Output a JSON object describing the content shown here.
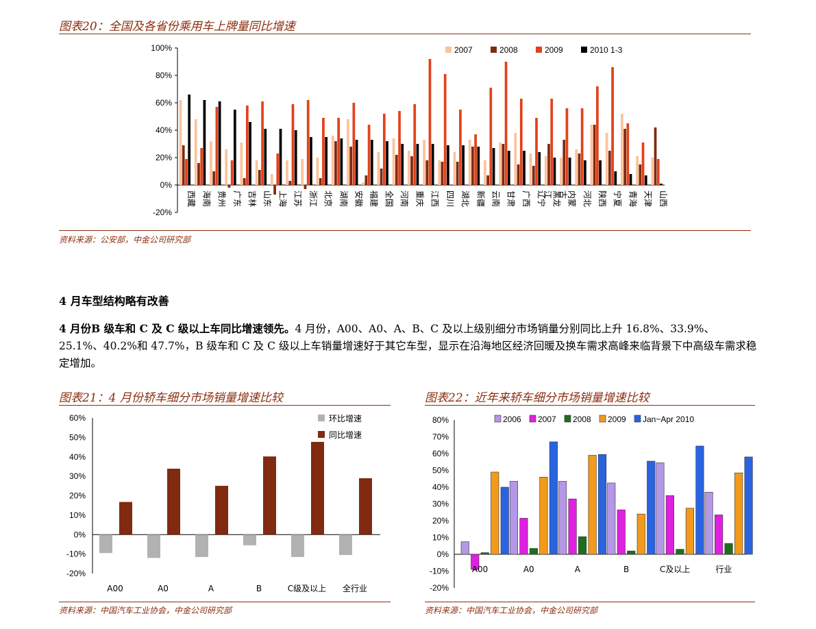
{
  "doc": {
    "fig20_title": "图表20：全国及各省份乘用车上牌量同比增速",
    "fig20_source": "资料来源：公安部，中金公司研究部",
    "section_heading": "4 月车型结构略有改善",
    "para_lead": "4 月份B 级车和 C 及 C 级以上车同比增速领先。",
    "para_rest": "4 月份，A00、A0、A、B、C 及以上级别细分市场销量分别同比上升 16.8%、33.9%、25.1%、40.2%和 47.7%，B 级车和 C 及 C 级以上车销量增速好于其它车型，显示在沿海地区经济回暖及换车需求高峰来临背景下中高级车需求稳定增加。",
    "fig21_title": "图表21：4 月份轿车细分市场销量增速比较",
    "fig21_source": "资料来源：中国汽车工业协会，中金公司研究部",
    "fig22_title": "图表22：近年来轿车细分市场销量增速比较",
    "fig22_source": "资料来源：中国汽车工业协会，中金公司研究部"
  },
  "chart_data": [
    {
      "type": "bar",
      "categories": [
        "西藏",
        "海南",
        "贵州",
        "广东",
        "吉林",
        "山东",
        "上海",
        "江苏",
        "浙江",
        "北京",
        "湖南",
        "安徽",
        "福建",
        "全国",
        "河南",
        "重庆",
        "江西",
        "四川",
        "湖北",
        "新疆",
        "云南",
        "甘肃",
        "广西",
        "辽宁",
        "黑龙江",
        "内蒙古",
        "河北",
        "陕西",
        "宁夏",
        "青海",
        "天津",
        "山西"
      ],
      "series": [
        {
          "name": "2007",
          "values": [
            62,
            48,
            32,
            26,
            31,
            18,
            8,
            18,
            19,
            20,
            36,
            48,
            2,
            24,
            34,
            25,
            33,
            18,
            24,
            33,
            18,
            31,
            38,
            23,
            21,
            20,
            26,
            44,
            38,
            52,
            21,
            20
          ]
        },
        {
          "name": "2008",
          "values": [
            29,
            16,
            10,
            -2,
            5,
            11,
            -7,
            3,
            -3,
            5,
            32,
            28,
            7,
            12,
            22,
            21,
            18,
            17,
            17,
            28,
            7,
            30,
            15,
            14,
            30,
            33,
            23,
            44,
            25,
            41,
            15,
            42
          ]
        },
        {
          "name": "2009",
          "values": [
            19,
            27,
            57,
            18,
            58,
            61,
            23,
            59,
            62,
            49,
            49,
            60,
            44,
            52,
            54,
            59,
            92,
            81,
            55,
            37,
            71,
            90,
            63,
            49,
            63,
            56,
            56,
            72,
            86,
            45,
            31,
            19
          ]
        },
        {
          "name": "2010 1-3",
          "values": [
            66,
            62,
            61,
            55,
            46,
            41,
            41,
            40,
            35,
            35,
            34,
            33,
            33,
            32,
            30,
            30,
            30,
            29,
            29,
            28,
            27,
            25,
            25,
            24,
            20,
            20,
            18,
            18,
            10,
            8,
            7,
            1
          ]
        }
      ],
      "ylim": [
        -20,
        100
      ],
      "yticks": [
        "100%",
        "80%",
        "60%",
        "40%",
        "20%",
        "0%",
        "-20%"
      ],
      "colors": [
        "#FBC39B",
        "#7F2A11",
        "#E2421A",
        "#000000"
      ],
      "legend": "top-right"
    },
    {
      "type": "bar",
      "categories": [
        "A00",
        "A0",
        "A",
        "B",
        "C级及以上",
        "全行业"
      ],
      "series": [
        {
          "name": "环比增速",
          "values": [
            -9.5,
            -12,
            -11.5,
            -5.5,
            -11.5,
            -10.5
          ]
        },
        {
          "name": "同比增速",
          "values": [
            16.8,
            33.9,
            25.1,
            40.2,
            47.7,
            29
          ]
        }
      ],
      "ylim": [
        -20,
        60
      ],
      "yticks": [
        "60%",
        "50%",
        "40%",
        "30%",
        "20%",
        "10%",
        "0%",
        "-10%",
        "-20%"
      ],
      "colors": [
        "#B2B2B2",
        "#7F2A11"
      ],
      "legend": "top-right"
    },
    {
      "type": "bar",
      "categories": [
        "A00",
        "A0",
        "A",
        "B",
        "C及以上",
        "行业"
      ],
      "series": [
        {
          "name": "2006",
          "values": [
            7.5,
            43.5,
            43.5,
            42.5,
            54.5,
            37
          ]
        },
        {
          "name": "2007",
          "values": [
            -9,
            21.5,
            33,
            26.5,
            35,
            23.5
          ]
        },
        {
          "name": "2008",
          "values": [
            1,
            3.5,
            10.5,
            2,
            3,
            6.5
          ]
        },
        {
          "name": "2009",
          "values": [
            49,
            46,
            59,
            24,
            27.5,
            48.5
          ]
        },
        {
          "name": "Jan~Apr 2010",
          "values": [
            40,
            67,
            59.5,
            55.5,
            64.5,
            58
          ]
        }
      ],
      "ylim": [
        -20,
        80
      ],
      "yticks": [
        "80%",
        "70%",
        "60%",
        "50%",
        "40%",
        "30%",
        "20%",
        "10%",
        "0%",
        "-10%",
        "-20%"
      ],
      "colors": [
        "#B497E7",
        "#E020E0",
        "#1E6E1E",
        "#F29A1C",
        "#2A63E0"
      ],
      "legend": "top"
    }
  ]
}
